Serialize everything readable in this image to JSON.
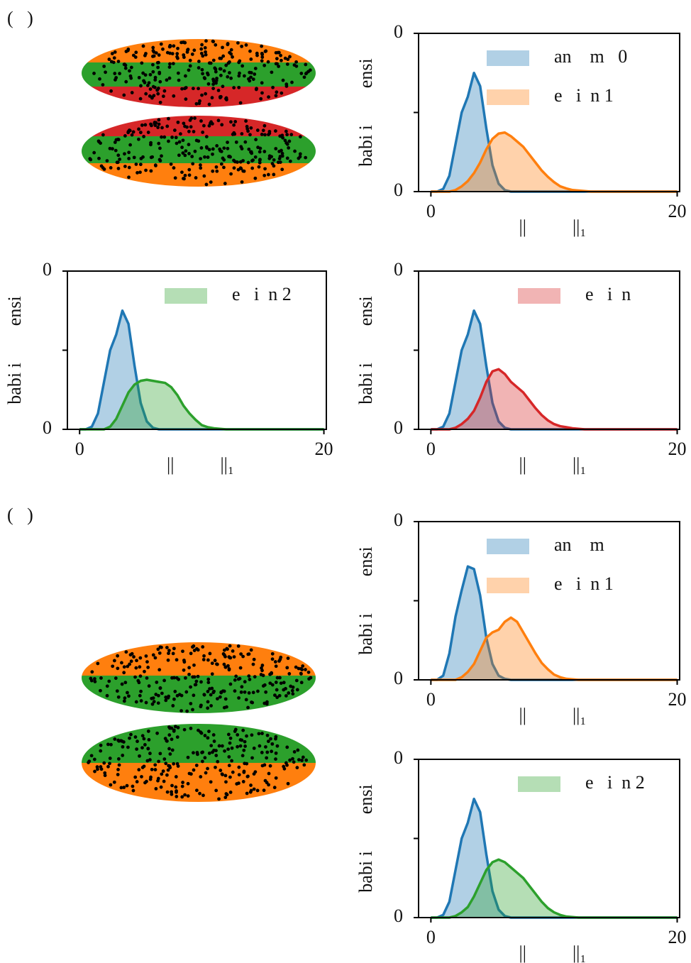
{
  "panel_labels": [
    "(   )",
    "(   )"
  ],
  "chart_data": [
    {
      "type": "density",
      "x_label": "||          ||₁",
      "y_label": "babi i        ensi",
      "legend": "upper right",
      "x": [
        0,
        0.5,
        1,
        1.5,
        2,
        2.5,
        3,
        3.5,
        4,
        4.5,
        5,
        5.5,
        6,
        6.5,
        7,
        7.5,
        8,
        8.5,
        9,
        9.5,
        10,
        10.5,
        11,
        11.5,
        12,
        12.5,
        13,
        13.5,
        14,
        14.5,
        15,
        15.5,
        16,
        16.5,
        17,
        17.5,
        18,
        18.5,
        19,
        19.5,
        20
      ],
      "xlim": [
        -1,
        20.2
      ],
      "xticks": [
        0,
        20
      ],
      "ylim": [
        0,
        0.3
      ],
      "yticks": [
        {
          "value": 0,
          "label": "0"
        },
        {
          "value": 0.15,
          "label": null
        },
        {
          "value": 0.3,
          "label": "0"
        }
      ],
      "series": [
        {
          "name": "an    m   0",
          "color": "#1f77b4",
          "values": [
            0,
            0,
            0.005,
            0.03,
            0.09,
            0.15,
            0.18,
            0.225,
            0.2,
            0.12,
            0.05,
            0.015,
            0.003,
            0,
            0,
            0,
            0,
            0,
            0,
            0,
            0,
            0,
            0,
            0,
            0,
            0,
            0,
            0,
            0,
            0,
            0,
            0,
            0,
            0,
            0,
            0,
            0,
            0,
            0,
            0,
            0
          ]
        },
        {
          "name": "e   i  n 1",
          "color": "#ff7f0e",
          "values": [
            0,
            0,
            0,
            0,
            0.003,
            0.01,
            0.02,
            0.035,
            0.055,
            0.08,
            0.1,
            0.11,
            0.112,
            0.105,
            0.095,
            0.085,
            0.07,
            0.055,
            0.04,
            0.028,
            0.018,
            0.01,
            0.006,
            0.003,
            0.002,
            0.001,
            0,
            0,
            0,
            0,
            0,
            0,
            0,
            0,
            0,
            0,
            0,
            0,
            0,
            0,
            0
          ]
        }
      ]
    },
    {
      "type": "density",
      "x_label": "||          ||₁",
      "y_label": "babi i        ensi",
      "legend": "upper right",
      "x": [
        0,
        0.5,
        1,
        1.5,
        2,
        2.5,
        3,
        3.5,
        4,
        4.5,
        5,
        5.5,
        6,
        6.5,
        7,
        7.5,
        8,
        8.5,
        9,
        9.5,
        10,
        10.5,
        11,
        11.5,
        12,
        12.5,
        13,
        13.5,
        14,
        14.5,
        15,
        15.5,
        16,
        16.5,
        17,
        17.5,
        18,
        18.5,
        19,
        19.5,
        20
      ],
      "xlim": [
        -1,
        20.2
      ],
      "xticks": [
        0,
        20
      ],
      "ylim": [
        0,
        0.3
      ],
      "yticks": [
        {
          "value": 0,
          "label": "0"
        },
        {
          "value": 0.15,
          "label": null
        },
        {
          "value": 0.3,
          "label": "0"
        }
      ],
      "series": [
        {
          "name": null,
          "color": "#1f77b4",
          "values": [
            0,
            0,
            0.005,
            0.03,
            0.09,
            0.15,
            0.18,
            0.225,
            0.2,
            0.12,
            0.05,
            0.015,
            0.003,
            0,
            0,
            0,
            0,
            0,
            0,
            0,
            0,
            0,
            0,
            0,
            0,
            0,
            0,
            0,
            0,
            0,
            0,
            0,
            0,
            0,
            0,
            0,
            0,
            0,
            0,
            0,
            0
          ]
        },
        {
          "name": "e   i  n 2",
          "color": "#2ca02c",
          "values": [
            0,
            0,
            0,
            0,
            0,
            0.005,
            0.02,
            0.045,
            0.07,
            0.085,
            0.092,
            0.094,
            0.092,
            0.09,
            0.088,
            0.08,
            0.065,
            0.045,
            0.03,
            0.018,
            0.008,
            0.004,
            0.002,
            0.001,
            0,
            0,
            0,
            0,
            0,
            0,
            0,
            0,
            0,
            0,
            0,
            0,
            0,
            0,
            0,
            0,
            0
          ]
        }
      ]
    },
    {
      "type": "density",
      "x_label": "||          ||₁",
      "y_label": "babi i        ensi",
      "legend": "upper right",
      "x": [
        0,
        0.5,
        1,
        1.5,
        2,
        2.5,
        3,
        3.5,
        4,
        4.5,
        5,
        5.5,
        6,
        6.5,
        7,
        7.5,
        8,
        8.5,
        9,
        9.5,
        10,
        10.5,
        11,
        11.5,
        12,
        12.5,
        13,
        13.5,
        14,
        14.5,
        15,
        15.5,
        16,
        16.5,
        17,
        17.5,
        18,
        18.5,
        19,
        19.5,
        20
      ],
      "xlim": [
        -1,
        20.2
      ],
      "xticks": [
        0,
        20
      ],
      "ylim": [
        0,
        0.3
      ],
      "yticks": [
        {
          "value": 0,
          "label": "0"
        },
        {
          "value": 0.15,
          "label": null
        },
        {
          "value": 0.3,
          "label": "0"
        }
      ],
      "series": [
        {
          "name": null,
          "color": "#1f77b4",
          "values": [
            0,
            0,
            0.005,
            0.03,
            0.09,
            0.15,
            0.18,
            0.225,
            0.2,
            0.12,
            0.05,
            0.015,
            0.003,
            0,
            0,
            0,
            0,
            0,
            0,
            0,
            0,
            0,
            0,
            0,
            0,
            0,
            0,
            0,
            0,
            0,
            0,
            0,
            0,
            0,
            0,
            0,
            0,
            0,
            0,
            0,
            0
          ]
        },
        {
          "name": "e   i  n",
          "color": "#d62728",
          "values": [
            0,
            0,
            0,
            0,
            0.003,
            0.01,
            0.02,
            0.035,
            0.06,
            0.09,
            0.11,
            0.114,
            0.105,
            0.09,
            0.08,
            0.07,
            0.055,
            0.04,
            0.027,
            0.017,
            0.01,
            0.006,
            0.004,
            0.002,
            0.001,
            0,
            0,
            0,
            0,
            0,
            0,
            0,
            0,
            0,
            0,
            0,
            0,
            0,
            0,
            0,
            0
          ]
        }
      ]
    },
    {
      "type": "density",
      "x_label": "||          ||₁",
      "y_label": "babi i        ensi",
      "legend": "upper right",
      "x": [
        0,
        0.5,
        1,
        1.5,
        2,
        2.5,
        3,
        3.5,
        4,
        4.5,
        5,
        5.5,
        6,
        6.5,
        7,
        7.5,
        8,
        8.5,
        9,
        9.5,
        10,
        10.5,
        11,
        11.5,
        12,
        12.5,
        13,
        13.5,
        14,
        14.5,
        15,
        15.5,
        16,
        16.5,
        17,
        17.5,
        18,
        18.5,
        19,
        19.5,
        20
      ],
      "xlim": [
        -1,
        20.2
      ],
      "xticks": [
        0,
        20
      ],
      "ylim": [
        0,
        0.3
      ],
      "yticks": [
        {
          "value": 0,
          "label": "0"
        },
        {
          "value": 0.15,
          "label": null
        },
        {
          "value": 0.3,
          "label": "0"
        }
      ],
      "series": [
        {
          "name": "an    m",
          "color": "#1f77b4",
          "values": [
            0,
            0,
            0.008,
            0.05,
            0.12,
            0.17,
            0.215,
            0.21,
            0.16,
            0.08,
            0.03,
            0.008,
            0.002,
            0,
            0,
            0,
            0,
            0,
            0,
            0,
            0,
            0,
            0,
            0,
            0,
            0,
            0,
            0,
            0,
            0,
            0,
            0,
            0,
            0,
            0,
            0,
            0,
            0,
            0,
            0,
            0
          ]
        },
        {
          "name": "e   i  n 1",
          "color": "#ff7f0e",
          "values": [
            0,
            0,
            0,
            0,
            0,
            0.005,
            0.015,
            0.03,
            0.055,
            0.08,
            0.09,
            0.095,
            0.11,
            0.118,
            0.11,
            0.09,
            0.07,
            0.05,
            0.032,
            0.02,
            0.01,
            0.005,
            0.002,
            0.001,
            0,
            0,
            0,
            0,
            0,
            0,
            0,
            0,
            0,
            0,
            0,
            0,
            0,
            0,
            0,
            0,
            0
          ]
        }
      ]
    },
    {
      "type": "density",
      "x_label": "||          ||₁",
      "y_label": "babi i        ensi",
      "legend": "upper right",
      "x": [
        0,
        0.5,
        1,
        1.5,
        2,
        2.5,
        3,
        3.5,
        4,
        4.5,
        5,
        5.5,
        6,
        6.5,
        7,
        7.5,
        8,
        8.5,
        9,
        9.5,
        10,
        10.5,
        11,
        11.5,
        12,
        12.5,
        13,
        13.5,
        14,
        14.5,
        15,
        15.5,
        16,
        16.5,
        17,
        17.5,
        18,
        18.5,
        19,
        19.5,
        20
      ],
      "xlim": [
        -1,
        20.2
      ],
      "xticks": [
        0,
        20
      ],
      "ylim": [
        0,
        0.3
      ],
      "yticks": [
        {
          "value": 0,
          "label": "0"
        },
        {
          "value": 0.15,
          "label": null
        },
        {
          "value": 0.3,
          "label": "0"
        }
      ],
      "series": [
        {
          "name": null,
          "color": "#1f77b4",
          "values": [
            0,
            0,
            0.005,
            0.03,
            0.09,
            0.15,
            0.18,
            0.225,
            0.2,
            0.12,
            0.05,
            0.015,
            0.003,
            0,
            0,
            0,
            0,
            0,
            0,
            0,
            0,
            0,
            0,
            0,
            0,
            0,
            0,
            0,
            0,
            0,
            0,
            0,
            0,
            0,
            0,
            0,
            0,
            0,
            0,
            0,
            0
          ]
        },
        {
          "name": "e   i  n 2",
          "color": "#2ca02c",
          "values": [
            0,
            0,
            0,
            0,
            0.003,
            0.01,
            0.02,
            0.04,
            0.065,
            0.09,
            0.105,
            0.11,
            0.105,
            0.095,
            0.085,
            0.075,
            0.06,
            0.045,
            0.03,
            0.018,
            0.01,
            0.005,
            0.002,
            0.001,
            0,
            0,
            0,
            0,
            0,
            0,
            0,
            0,
            0,
            0,
            0,
            0,
            0,
            0,
            0,
            0,
            0
          ]
        }
      ]
    }
  ]
}
